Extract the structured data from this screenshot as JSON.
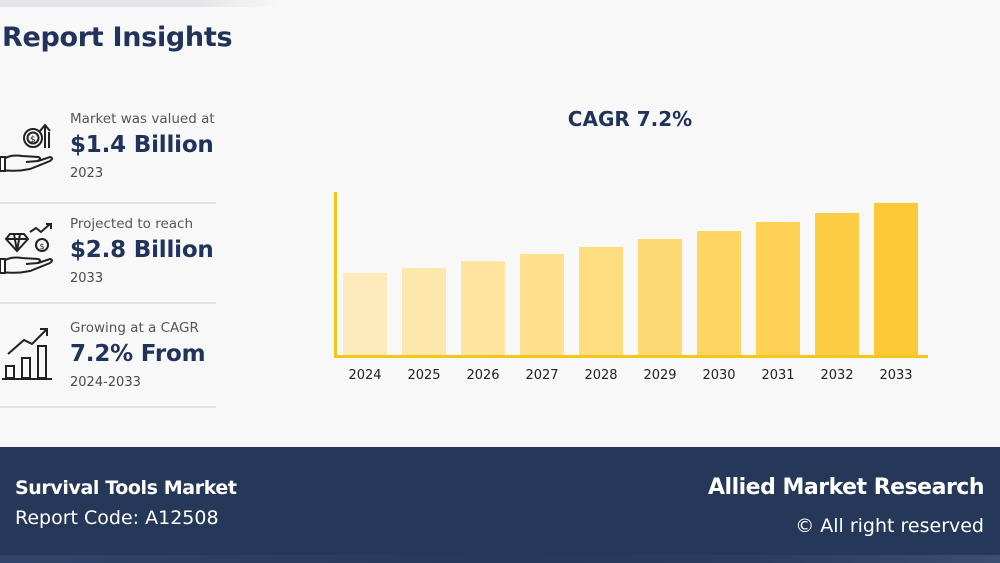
{
  "header": {
    "title": "Report Insights"
  },
  "stats": [
    {
      "icon": "money-hand-growth-icon",
      "label": "Market was valued at",
      "value": "$1.4 Billion",
      "sub": "2023"
    },
    {
      "icon": "diamond-coin-hand-icon",
      "label": "Projected to reach",
      "value": "$2.8 Billion",
      "sub": "2033"
    },
    {
      "icon": "bar-chart-trend-icon",
      "label": "Growing at a CAGR",
      "value": "7.2% From",
      "sub": "2024-2033"
    }
  ],
  "chart": {
    "title": "CAGR 7.2%"
  },
  "chart_data": {
    "type": "bar",
    "title": "CAGR 7.2%",
    "xlabel": "",
    "ylabel": "",
    "categories": [
      "2024",
      "2025",
      "2026",
      "2027",
      "2028",
      "2029",
      "2030",
      "2031",
      "2032",
      "2033"
    ],
    "values": [
      1.5,
      1.61,
      1.73,
      1.85,
      1.98,
      2.13,
      2.28,
      2.44,
      2.62,
      2.8
    ],
    "units": "USD Billion (estimated from bar heights; no value labels shown)",
    "ylim": [
      0,
      3.0
    ],
    "grid": false,
    "legend": null,
    "bar_colors": [
      "#feebbb",
      "#fee7ab",
      "#fee49e",
      "#fee08f",
      "#fedc80",
      "#fed872",
      "#fed464",
      "#fed155",
      "#fecd46",
      "#fec937"
    ]
  },
  "footer": {
    "market_name": "Survival Tools Market",
    "report_code": "Report Code: A12508",
    "brand": "Allied Market Research",
    "rights": "© All right reserved"
  },
  "colors": {
    "navy": "#21335a",
    "footer_bg": "#263859",
    "axis": "#f5c518",
    "background": "#f8f8f8"
  }
}
